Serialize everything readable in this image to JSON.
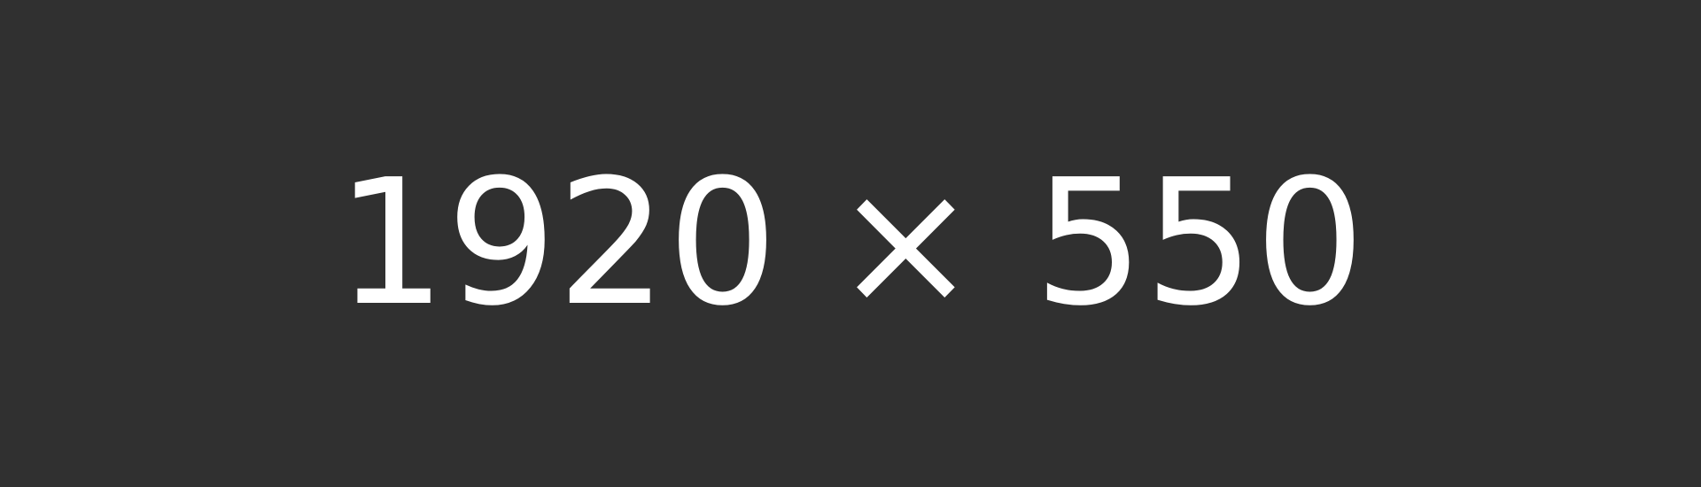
{
  "placeholder": {
    "label": "1920 × 550",
    "colors": {
      "background": "#303030",
      "text": "#ffffff"
    }
  }
}
